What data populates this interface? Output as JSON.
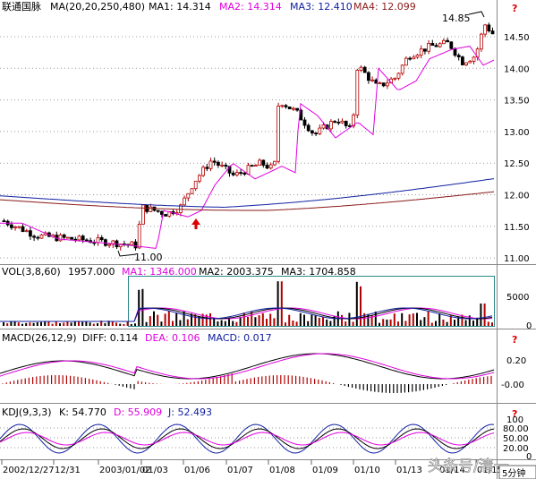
{
  "colors": {
    "up": "#b30000",
    "down": "#000000",
    "ma1": "#000000",
    "ma2": "#e000e0",
    "ma3": "#1020a0",
    "ma4": "#8b1a1a",
    "grid": "#9a9a9a",
    "help": "#e00000",
    "arrow": "#e00000",
    "box": "#2a8a8a",
    "accent": "#ff00ff"
  },
  "price_panel": {
    "stock_name": "联通国脉",
    "ma_params": "MA(20,20,250,480)",
    "ma1": "MA1: 14.314",
    "ma2": "MA2: 14.314",
    "ma3": "MA3: 12.410",
    "ma4": "MA4: 12.099",
    "high_marker": "14.85",
    "low_marker": "11.00",
    "y_ticks": [
      "14.50",
      "14.00",
      "13.50",
      "13.00",
      "12.50",
      "12.00",
      "11.50",
      "11.00"
    ],
    "help_icon": "question-mark-icon"
  },
  "vol_panel": {
    "label": "VOL(3,8,60)",
    "value": "1957.000",
    "ma1": "MA1: 1346.000",
    "ma2": "MA2: 2003.375",
    "ma3": "MA3: 1704.858",
    "y_ticks": [
      "5000",
      "0"
    ]
  },
  "macd_panel": {
    "label": "MACD(26,12,9)",
    "diff": "DIFF: 0.114",
    "dea": "DEA: 0.106",
    "macd": "MACD: 0.017",
    "y_ticks": [
      "0.20",
      "-0.00"
    ],
    "help_icon": "question-mark-icon"
  },
  "kdj_panel": {
    "label": "KDJ(9,3,3)",
    "k": "K: 54.770",
    "d": "D: 55.909",
    "j": "J: 52.493",
    "y_ticks": [
      "100",
      "80.00",
      "50.00",
      "20.00",
      "0"
    ],
    "help_icon": "question-mark-icon"
  },
  "dates": [
    "2002/12/27",
    "12/31",
    "2003/01/02",
    "01/03",
    "01/06",
    "01/07",
    "01/08",
    "01/09",
    "01/10",
    "01/13",
    "01/14",
    "01/15"
  ],
  "footer": {
    "period": "5分钟",
    "watermark": "头条号/清一"
  }
}
